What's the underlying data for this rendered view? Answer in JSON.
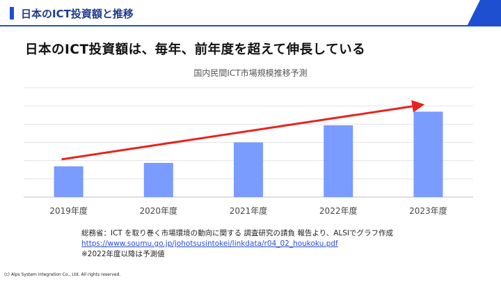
{
  "header": {
    "title": "日本のICT投資額と推移"
  },
  "headline": "日本のICT投資額は、毎年、前年度を超えて伸長している",
  "chart_data": {
    "type": "bar",
    "title": "国内民間ICT市場規模推移予測",
    "categories": [
      "2019年度",
      "2020年度",
      "2021年度",
      "2022年度",
      "2023年度"
    ],
    "values": [
      45,
      50,
      80,
      105,
      125
    ],
    "ylim": [
      0,
      160
    ],
    "grid": true,
    "bar_color": "#7a9bff",
    "trend_arrow_color": "#e8231f"
  },
  "footnote": {
    "source": "総務省：ICT を取り巻く市場環境の動向に関する 調査研究の請負 報告より、ALSIでグラフ作成",
    "url": "https://www.soumu.go.jp/johotsusintokei/linkdata/r04_02_houkoku.pdf",
    "note": "※2022年度以降は予測値"
  },
  "copyright": "(c) Alps System Integration Co., Ltd. All rights reserved.",
  "colors": {
    "header_blue": "#1f4fd1",
    "title_navy": "#1f3a8c"
  }
}
